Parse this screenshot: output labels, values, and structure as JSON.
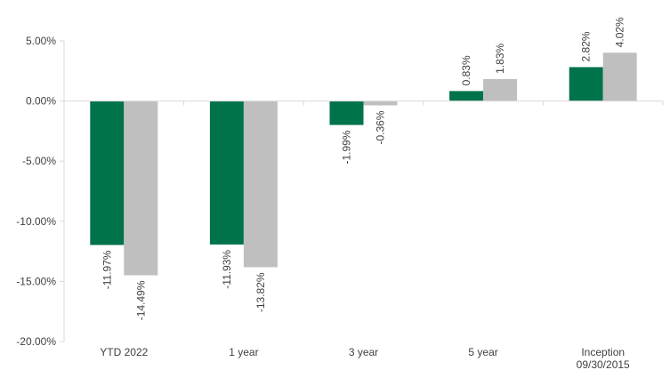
{
  "chart_data": {
    "type": "bar",
    "categories": [
      [
        "YTD 2022"
      ],
      [
        "1 year"
      ],
      [
        "3 year"
      ],
      [
        "5 year"
      ],
      [
        "Inception",
        "09/30/2015"
      ]
    ],
    "series": [
      {
        "values": [
          -11.97,
          -11.93,
          -1.99,
          0.83,
          2.82
        ],
        "labels": [
          "-11.97%",
          "-11.93%",
          "-1.99%",
          "0.83%",
          "2.82%"
        ]
      },
      {
        "values": [
          -14.49,
          -13.82,
          -0.36,
          1.83,
          4.02
        ],
        "labels": [
          "-14.49%",
          "-13.82%",
          "-0.36%",
          "1.83%",
          "4.02%"
        ]
      }
    ],
    "y_ticks": [
      5,
      0,
      -5,
      -10,
      -15,
      -20
    ],
    "y_tick_labels": [
      "5.00%",
      "0.00%",
      "-5.00%",
      "-10.00%",
      "-15.00%",
      "-20.00%"
    ],
    "ylim": [
      -20,
      5
    ],
    "grid": false,
    "legend": "none"
  },
  "colors": {
    "series_1": "#00734a",
    "series_2": "#bfbfbf",
    "axis": "#d9d9d9",
    "text": "#404040"
  }
}
